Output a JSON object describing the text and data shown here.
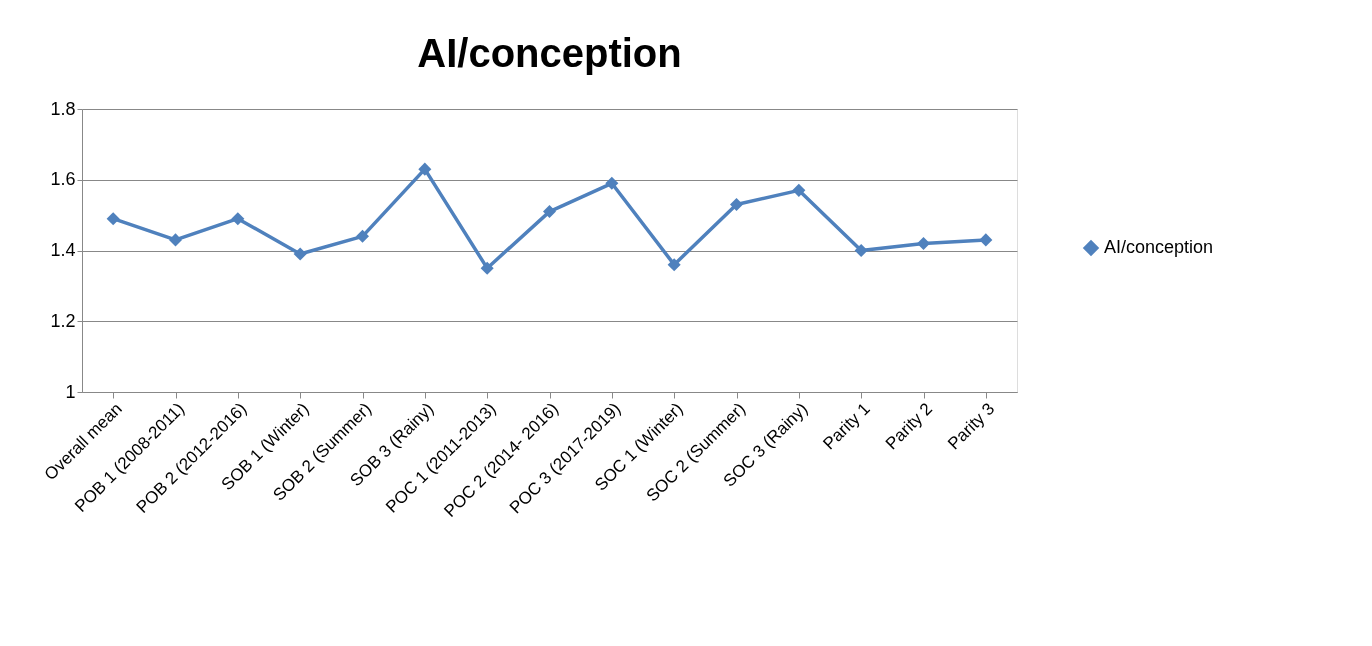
{
  "chart_data": {
    "type": "line",
    "title": "AI/conception",
    "categories": [
      "Overall mean",
      "POB 1  (2008-2011)",
      "POB 2  (2012-2016)",
      "SOB 1 (Winter)",
      "SOB 2 (Summer)",
      "SOB 3 (Rainy)",
      "POC 1 (2011-2013)",
      "POC 2 (2014-  2016)",
      "POC 3 (2017-2019)",
      "SOC 1 (Winter)",
      "SOC 2 (Summer)",
      "SOC 3 (Rainy)",
      "Parity 1",
      "Parity 2",
      "Parity 3"
    ],
    "series": [
      {
        "name": "AI/conception",
        "color": "#4f81bd",
        "values": [
          1.49,
          1.43,
          1.49,
          1.39,
          1.44,
          1.63,
          1.35,
          1.51,
          1.59,
          1.36,
          1.53,
          1.57,
          1.4,
          1.42,
          1.43
        ]
      }
    ],
    "ylim": [
      1,
      1.8
    ],
    "yticks": [
      1,
      1.2,
      1.4,
      1.6,
      1.8
    ],
    "grid": "y",
    "legend": "right",
    "marker": "diamond",
    "line_style": "solid"
  }
}
